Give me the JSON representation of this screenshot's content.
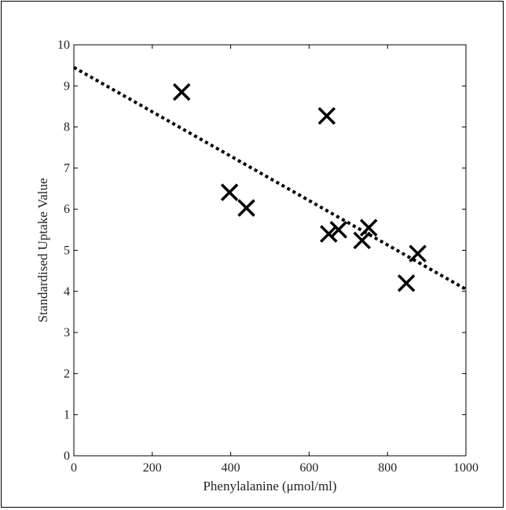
{
  "chart_data": {
    "type": "scatter",
    "xlabel": "Phenylalanine (μmol/ml)",
    "ylabel": "Standardised Uptake Value",
    "xlim": [
      0,
      1000
    ],
    "ylim": [
      0,
      10
    ],
    "x_ticks": [
      0,
      200,
      400,
      600,
      800,
      1000
    ],
    "y_ticks": [
      0,
      1,
      2,
      3,
      4,
      5,
      6,
      7,
      8,
      9,
      10
    ],
    "grid": false,
    "marker": "x",
    "series": [
      {
        "points": [
          {
            "x": 275,
            "y": 8.85
          },
          {
            "x": 645,
            "y": 8.27
          },
          {
            "x": 397,
            "y": 6.41
          },
          {
            "x": 440,
            "y": 6.03
          },
          {
            "x": 650,
            "y": 5.4
          },
          {
            "x": 675,
            "y": 5.5
          },
          {
            "x": 735,
            "y": 5.24
          },
          {
            "x": 752,
            "y": 5.55
          },
          {
            "x": 877,
            "y": 4.92
          },
          {
            "x": 848,
            "y": 4.2
          }
        ]
      }
    ],
    "trendline": {
      "style": "dotted",
      "x": [
        0,
        1000
      ],
      "y": [
        9.45,
        4.05
      ]
    },
    "colors": {
      "marker": "#000000",
      "trendline": "#000000",
      "axis": "#000000"
    }
  }
}
